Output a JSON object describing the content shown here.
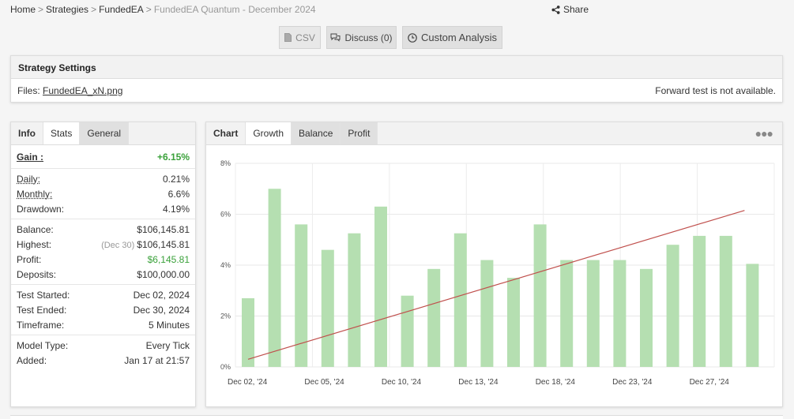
{
  "breadcrumb": {
    "home": "Home",
    "strategies": "Strategies",
    "fundedea": "FundedEA",
    "current": "FundedEA Quantum - December 2024"
  },
  "share_label": "Share",
  "toolbar": {
    "csv_label": "CSV",
    "discuss_label": "Discuss (0)",
    "custom_label": "Custom Analysis"
  },
  "settings": {
    "title": "Strategy Settings",
    "files_label": "Files:",
    "file_name": "FundedEA_xN.png",
    "forward_note": "Forward test is not available."
  },
  "info": {
    "tabs": [
      "Info",
      "Stats",
      "General"
    ],
    "gain_label": "Gain :",
    "gain_value": "+6.15%",
    "daily_label": "Daily:",
    "daily_value": "0.21%",
    "monthly_label": "Monthly:",
    "monthly_value": "6.6%",
    "drawdown_label": "Drawdown:",
    "drawdown_value": "4.19%",
    "balance_label": "Balance:",
    "balance_value": "$106,145.81",
    "highest_label": "Highest:",
    "highest_date": "(Dec 30)",
    "highest_value": "$106,145.81",
    "profit_label": "Profit:",
    "profit_value": "$6,145.81",
    "deposits_label": "Deposits:",
    "deposits_value": "$100,000.00",
    "started_label": "Test Started:",
    "started_value": "Dec 02, 2024",
    "ended_label": "Test Ended:",
    "ended_value": "Dec 30, 2024",
    "timeframe_label": "Timeframe:",
    "timeframe_value": "5 Minutes",
    "model_label": "Model Type:",
    "model_value": "Every Tick",
    "added_label": "Added:",
    "added_value": "Jan 17 at 21:57"
  },
  "chart_tabs": [
    "Chart",
    "Growth",
    "Balance",
    "Profit"
  ],
  "colors": {
    "bar": "#b5dfb1",
    "line": "#c0504d",
    "gain": "#3aa13a"
  },
  "chart_data": {
    "type": "bar",
    "ylim": [
      0,
      8
    ],
    "yticks": [
      "0%",
      "2%",
      "4%",
      "6%",
      "8%"
    ],
    "xtick_labels": [
      "Dec 02, '24",
      "Dec 05, '24",
      "Dec 10, '24",
      "Dec 13, '24",
      "Dec 18, '24",
      "Dec 23, '24",
      "Dec 27, '24"
    ],
    "bars": [
      2.7,
      7.0,
      5.6,
      4.6,
      5.25,
      6.3,
      2.8,
      3.85,
      5.25,
      4.2,
      3.5,
      5.6,
      4.2,
      4.2,
      4.2,
      3.85,
      4.8,
      5.15,
      5.15,
      4.05
    ],
    "trend": [
      0.3,
      6.15
    ]
  }
}
